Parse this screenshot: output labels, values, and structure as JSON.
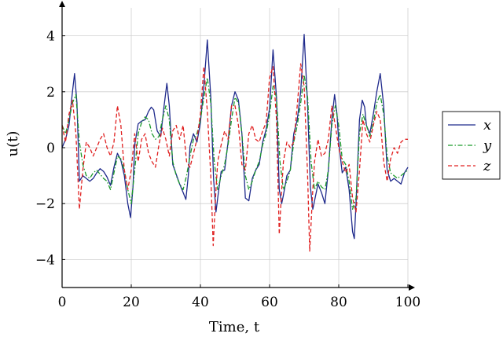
{
  "chart_data": {
    "type": "line",
    "xlabel": "Time, t",
    "ylabel": "u(t)",
    "xlim": [
      0,
      100
    ],
    "ylim": [
      -5,
      5
    ],
    "xticks": [
      0,
      20,
      40,
      60,
      80,
      100
    ],
    "yticks": [
      -4,
      -2,
      0,
      2,
      4
    ],
    "grid": true,
    "legend_position": "right",
    "series": [
      {
        "name": "x",
        "color": "#1f2a8c",
        "dash": "solid",
        "points": [
          [
            0,
            0
          ],
          [
            1,
            0.3
          ],
          [
            2,
            0.8
          ],
          [
            3,
            2.0
          ],
          [
            3.6,
            2.65
          ],
          [
            4.3,
            1.6
          ],
          [
            5,
            -1.2
          ],
          [
            6,
            -1.0
          ],
          [
            7,
            -1.1
          ],
          [
            8,
            -1.2
          ],
          [
            9,
            -1.1
          ],
          [
            10,
            -0.9
          ],
          [
            11,
            -0.75
          ],
          [
            12,
            -0.85
          ],
          [
            13,
            -1.05
          ],
          [
            14,
            -1.35
          ],
          [
            15,
            -0.7
          ],
          [
            16,
            -0.2
          ],
          [
            17,
            -0.45
          ],
          [
            18,
            -1.0
          ],
          [
            19,
            -2.0
          ],
          [
            19.8,
            -2.5
          ],
          [
            20.5,
            -1.4
          ],
          [
            21,
            0.1
          ],
          [
            22,
            0.85
          ],
          [
            23,
            0.95
          ],
          [
            24,
            1.0
          ],
          [
            25,
            1.3
          ],
          [
            25.8,
            1.45
          ],
          [
            26.5,
            1.35
          ],
          [
            27.5,
            0.6
          ],
          [
            28.5,
            0.4
          ],
          [
            29.5,
            1.5
          ],
          [
            30.3,
            2.3
          ],
          [
            31,
            1.5
          ],
          [
            32,
            -0.6
          ],
          [
            33,
            -0.95
          ],
          [
            34,
            -1.3
          ],
          [
            35,
            -1.6
          ],
          [
            35.8,
            -1.85
          ],
          [
            36.5,
            -1.0
          ],
          [
            37,
            0.05
          ],
          [
            38,
            0.5
          ],
          [
            39,
            0.2
          ],
          [
            40,
            0.9
          ],
          [
            41,
            2.2
          ],
          [
            42,
            3.85
          ],
          [
            43,
            1.8
          ],
          [
            43.8,
            -1.1
          ],
          [
            44.5,
            -2.3
          ],
          [
            45,
            -1.8
          ],
          [
            46,
            -0.85
          ],
          [
            47,
            -0.8
          ],
          [
            48,
            0.2
          ],
          [
            49,
            1.5
          ],
          [
            50,
            2.0
          ],
          [
            51,
            1.7
          ],
          [
            52,
            0.5
          ],
          [
            53,
            -1.8
          ],
          [
            54,
            -1.9
          ],
          [
            55,
            -1.1
          ],
          [
            56,
            -0.8
          ],
          [
            57,
            -0.6
          ],
          [
            58,
            0.2
          ],
          [
            59,
            0.65
          ],
          [
            60,
            1.4
          ],
          [
            61,
            3.5
          ],
          [
            62,
            1.8
          ],
          [
            62.8,
            -1.5
          ],
          [
            63.5,
            -2.0
          ],
          [
            64,
            -1.7
          ],
          [
            65,
            -1.0
          ],
          [
            66,
            -0.8
          ],
          [
            67,
            0.5
          ],
          [
            68,
            1.0
          ],
          [
            69,
            2.0
          ],
          [
            70,
            4.05
          ],
          [
            71,
            1.5
          ],
          [
            71.8,
            -1.4
          ],
          [
            72.5,
            -2.2
          ],
          [
            73,
            -1.9
          ],
          [
            74,
            -1.3
          ],
          [
            75,
            -1.6
          ],
          [
            76,
            -2.0
          ],
          [
            77,
            -0.8
          ],
          [
            78,
            1.0
          ],
          [
            78.8,
            1.9
          ],
          [
            79.5,
            1.2
          ],
          [
            80,
            0.2
          ],
          [
            81,
            -0.9
          ],
          [
            82,
            -0.7
          ],
          [
            83,
            -1.5
          ],
          [
            84,
            -3.0
          ],
          [
            84.5,
            -3.25
          ],
          [
            85,
            -2.0
          ],
          [
            86,
            1.0
          ],
          [
            86.8,
            1.7
          ],
          [
            87.5,
            1.45
          ],
          [
            88,
            0.8
          ],
          [
            89,
            0.5
          ],
          [
            90,
            1.2
          ],
          [
            91,
            2.0
          ],
          [
            92,
            2.65
          ],
          [
            93,
            1.5
          ],
          [
            94,
            -0.8
          ],
          [
            95,
            -1.2
          ],
          [
            96,
            -1.1
          ],
          [
            97,
            -1.2
          ],
          [
            98,
            -1.3
          ],
          [
            99,
            -0.9
          ],
          [
            100,
            -0.7
          ]
        ]
      },
      {
        "name": "y",
        "color": "#1a9a2a",
        "dash": "dashdot",
        "points": [
          [
            0,
            0.8
          ],
          [
            1,
            0.5
          ],
          [
            2,
            1.0
          ],
          [
            3,
            1.6
          ],
          [
            4,
            1.9
          ],
          [
            5,
            0.2
          ],
          [
            6,
            -0.6
          ],
          [
            7,
            -1.0
          ],
          [
            8,
            -1.1
          ],
          [
            9,
            -0.9
          ],
          [
            10,
            -0.8
          ],
          [
            11,
            -0.95
          ],
          [
            12,
            -1.1
          ],
          [
            13,
            -1.2
          ],
          [
            14,
            -1.5
          ],
          [
            15,
            -0.9
          ],
          [
            16,
            -0.3
          ],
          [
            17,
            -0.4
          ],
          [
            18,
            -0.8
          ],
          [
            19,
            -1.5
          ],
          [
            20,
            -2.0
          ],
          [
            21,
            -0.8
          ],
          [
            22,
            0.5
          ],
          [
            23,
            0.9
          ],
          [
            24,
            1.1
          ],
          [
            25,
            1.0
          ],
          [
            26,
            0.5
          ],
          [
            27,
            0.3
          ],
          [
            28,
            0.4
          ],
          [
            29,
            1.0
          ],
          [
            30,
            1.5
          ],
          [
            31,
            1.0
          ],
          [
            32,
            -0.5
          ],
          [
            33,
            -1.0
          ],
          [
            34,
            -1.3
          ],
          [
            35,
            -1.5
          ],
          [
            36,
            -1.0
          ],
          [
            37,
            -0.3
          ],
          [
            38,
            0.3
          ],
          [
            39,
            0.5
          ],
          [
            40,
            1.0
          ],
          [
            41,
            1.8
          ],
          [
            42,
            2.5
          ],
          [
            43,
            1.6
          ],
          [
            44,
            -0.5
          ],
          [
            45,
            -1.5
          ],
          [
            46,
            -1.0
          ],
          [
            47,
            -0.6
          ],
          [
            48,
            0.1
          ],
          [
            49,
            1.0
          ],
          [
            50,
            1.8
          ],
          [
            51,
            1.6
          ],
          [
            52,
            0.5
          ],
          [
            53,
            -1.0
          ],
          [
            54,
            -1.5
          ],
          [
            55,
            -1.2
          ],
          [
            56,
            -0.8
          ],
          [
            57,
            -0.5
          ],
          [
            58,
            0.1
          ],
          [
            59,
            0.5
          ],
          [
            60,
            1.2
          ],
          [
            61,
            2.2
          ],
          [
            62,
            1.8
          ],
          [
            63,
            -0.5
          ],
          [
            64,
            -1.5
          ],
          [
            65,
            -1.2
          ],
          [
            66,
            -0.8
          ],
          [
            67,
            0.2
          ],
          [
            68,
            0.8
          ],
          [
            69,
            1.6
          ],
          [
            70,
            2.6
          ],
          [
            71,
            1.8
          ],
          [
            72,
            -0.5
          ],
          [
            73,
            -1.5
          ],
          [
            74,
            -1.2
          ],
          [
            75,
            -1.4
          ],
          [
            76,
            -1.5
          ],
          [
            77,
            -0.8
          ],
          [
            78,
            0.8
          ],
          [
            79,
            1.5
          ],
          [
            80,
            0.8
          ],
          [
            81,
            -0.4
          ],
          [
            82,
            -0.6
          ],
          [
            83,
            -1.2
          ],
          [
            84,
            -2.2
          ],
          [
            85,
            -1.8
          ],
          [
            86,
            0.5
          ],
          [
            87,
            1.2
          ],
          [
            88,
            0.8
          ],
          [
            89,
            0.4
          ],
          [
            90,
            0.9
          ],
          [
            91,
            1.6
          ],
          [
            92,
            1.9
          ],
          [
            93,
            1.2
          ],
          [
            94,
            -0.3
          ],
          [
            95,
            -0.9
          ],
          [
            96,
            -1.0
          ],
          [
            97,
            -1.1
          ],
          [
            98,
            -1.0
          ],
          [
            99,
            -0.9
          ],
          [
            100,
            -0.8
          ]
        ]
      },
      {
        "name": "z",
        "color": "#e02020",
        "dash": "dashed",
        "points": [
          [
            0,
            0.8
          ],
          [
            1,
            0.2
          ],
          [
            2,
            1.2
          ],
          [
            3,
            1.7
          ],
          [
            4,
            0.5
          ],
          [
            5,
            -2.2
          ],
          [
            6,
            -0.8
          ],
          [
            7,
            0.2
          ],
          [
            8,
            0.0
          ],
          [
            9,
            -0.3
          ],
          [
            10,
            0.0
          ],
          [
            11,
            0.3
          ],
          [
            12,
            0.5
          ],
          [
            13,
            0.0
          ],
          [
            14,
            -0.3
          ],
          [
            15,
            0.2
          ],
          [
            16,
            1.5
          ],
          [
            17,
            0.8
          ],
          [
            18,
            -0.8
          ],
          [
            19,
            -1.5
          ],
          [
            20,
            -0.8
          ],
          [
            21,
            0.5
          ],
          [
            22,
            -0.5
          ],
          [
            23,
            0.3
          ],
          [
            24,
            0.5
          ],
          [
            25,
            -0.2
          ],
          [
            26,
            -0.5
          ],
          [
            27,
            -0.7
          ],
          [
            28,
            0.1
          ],
          [
            29,
            0.7
          ],
          [
            30,
            0.3
          ],
          [
            31,
            -0.3
          ],
          [
            32,
            0.6
          ],
          [
            33,
            0.8
          ],
          [
            34,
            0.3
          ],
          [
            35,
            0.8
          ],
          [
            36,
            -0.5
          ],
          [
            37,
            -0.7
          ],
          [
            38,
            -0.2
          ],
          [
            39,
            0.3
          ],
          [
            40,
            1.2
          ],
          [
            41,
            2.9
          ],
          [
            42,
            1.3
          ],
          [
            43,
            -1.0
          ],
          [
            43.7,
            -3.5
          ],
          [
            44.5,
            -1.5
          ],
          [
            45,
            -0.5
          ],
          [
            46,
            0.1
          ],
          [
            47,
            0.6
          ],
          [
            48,
            0.3
          ],
          [
            49,
            1.5
          ],
          [
            50,
            1.5
          ],
          [
            51,
            0.8
          ],
          [
            52,
            -0.6
          ],
          [
            53,
            -0.8
          ],
          [
            54,
            0.5
          ],
          [
            55,
            0.8
          ],
          [
            56,
            0.3
          ],
          [
            57,
            0.2
          ],
          [
            58,
            0.6
          ],
          [
            59,
            0.9
          ],
          [
            60,
            2.5
          ],
          [
            61,
            2.9
          ],
          [
            62,
            1.0
          ],
          [
            62.8,
            -3.1
          ],
          [
            63.5,
            -1.5
          ],
          [
            64,
            -0.5
          ],
          [
            65,
            0.2
          ],
          [
            66,
            0.0
          ],
          [
            67,
            0.2
          ],
          [
            68,
            1.5
          ],
          [
            69,
            3.0
          ],
          [
            70,
            2.2
          ],
          [
            71,
            -1.0
          ],
          [
            71.6,
            -3.7
          ],
          [
            72.5,
            -1.5
          ],
          [
            73,
            -0.5
          ],
          [
            74,
            0.3
          ],
          [
            75,
            -0.3
          ],
          [
            76,
            -0.2
          ],
          [
            77,
            0.3
          ],
          [
            78,
            1.5
          ],
          [
            79,
            0.8
          ],
          [
            80,
            0.0
          ],
          [
            81,
            -0.5
          ],
          [
            82,
            -0.9
          ],
          [
            83,
            -0.6
          ],
          [
            84,
            -1.8
          ],
          [
            85,
            -2.3
          ],
          [
            86,
            -0.8
          ],
          [
            87,
            1.0
          ],
          [
            88,
            0.5
          ],
          [
            89,
            0.2
          ],
          [
            90,
            0.8
          ],
          [
            91,
            1.3
          ],
          [
            92,
            1.0
          ],
          [
            93,
            -0.5
          ],
          [
            94,
            -1.2
          ],
          [
            95,
            -0.4
          ],
          [
            96,
            0.0
          ],
          [
            97,
            -0.2
          ],
          [
            98,
            0.2
          ],
          [
            99,
            0.3
          ],
          [
            100,
            0.3
          ]
        ]
      }
    ]
  }
}
